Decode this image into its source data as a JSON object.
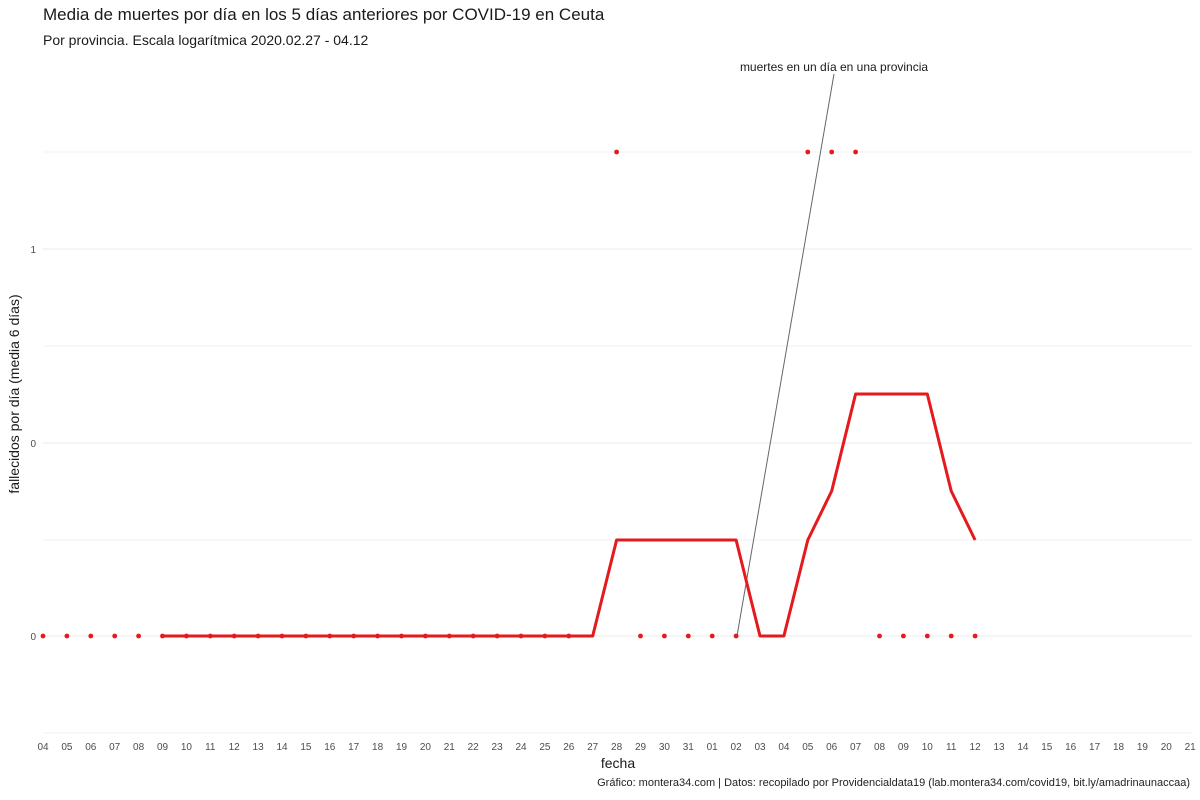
{
  "chart_data": {
    "type": "line",
    "title": "Media de muertes por día en los 5 días anteriores por COVID-19 en Ceuta",
    "subtitle": "Por provincia. Escala logarítmica  2020.02.27 - 04.12",
    "xlabel": "fecha",
    "ylabel": "fallecidos por día (media 6 días)",
    "caption": "Gráfico: montera34.com | Datos: recopilado por Providencialdata19 (lab.montera34.com/covid19, bit.ly/amadrinaunaccaa)",
    "annotation": "muertes en un día en una provincia",
    "scale": "log",
    "grid": true,
    "x_ticks": [
      "04",
      "05",
      "06",
      "07",
      "08",
      "09",
      "10",
      "11",
      "12",
      "13",
      "14",
      "15",
      "16",
      "17",
      "18",
      "19",
      "20",
      "21",
      "22",
      "23",
      "24",
      "25",
      "26",
      "27",
      "28",
      "29",
      "30",
      "31",
      "01",
      "02",
      "03",
      "04",
      "05",
      "06",
      "07",
      "08",
      "09",
      "10",
      "11",
      "12",
      "13",
      "14",
      "15",
      "16",
      "17",
      "18",
      "19",
      "20",
      "21"
    ],
    "y_ticks": [
      "0",
      "0",
      "1"
    ],
    "line_color": "#e41a1c",
    "series": [
      {
        "name": "",
        "kind": "line",
        "x": [
          "09",
          "10",
          "11",
          "12",
          "13",
          "14",
          "15",
          "16",
          "17",
          "18",
          "19",
          "20",
          "21",
          "22",
          "23",
          "24",
          "25",
          "26",
          "27",
          "28",
          "29",
          "30",
          "31",
          "01",
          "02",
          "03",
          "04",
          "05",
          "06",
          "07",
          "08",
          "09",
          "10",
          "11",
          "12"
        ],
        "y": [
          0.0,
          0.0,
          0.0,
          0.0,
          0.0,
          0.0,
          0.0,
          0.0,
          0.0,
          0.0,
          0.0,
          0.0,
          0.0,
          0.0,
          0.0,
          0.0,
          0.0,
          0.0,
          0.0,
          0.17,
          0.17,
          0.17,
          0.17,
          0.17,
          0.17,
          0.0,
          0.0,
          0.17,
          0.33,
          0.5,
          0.5,
          0.5,
          0.5,
          0.33,
          0.17
        ]
      },
      {
        "name": "",
        "kind": "points",
        "x": [
          "04",
          "05",
          "06",
          "07",
          "08",
          "09",
          "10",
          "11",
          "12",
          "13",
          "14",
          "15",
          "16",
          "17",
          "18",
          "19",
          "20",
          "21",
          "22",
          "23",
          "24",
          "25",
          "26",
          "28",
          "29",
          "30",
          "31",
          "01",
          "02",
          "05",
          "06",
          "07",
          "08",
          "09",
          "10",
          "11",
          "12"
        ],
        "y": [
          0,
          0,
          0,
          0,
          0,
          0,
          0,
          0,
          0,
          0,
          0,
          0,
          0,
          0,
          0,
          0,
          0,
          0,
          0,
          0,
          0,
          0,
          0,
          1,
          0,
          0,
          0,
          0,
          0,
          1,
          1,
          1,
          0,
          0,
          0,
          0,
          0
        ]
      }
    ]
  }
}
